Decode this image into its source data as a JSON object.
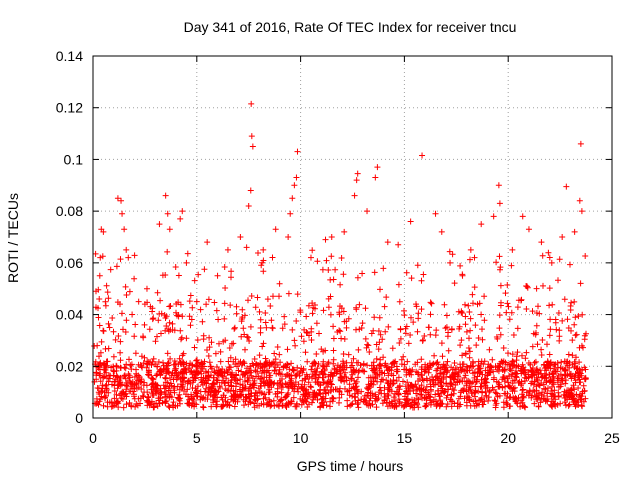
{
  "chart_data": {
    "type": "scatter",
    "title": "Day 341 of 2016, Rate Of TEC Index for receiver tncu",
    "xlabel": "GPS time / hours",
    "ylabel": "ROTI / TECUs",
    "xlim": [
      0,
      25
    ],
    "ylim": [
      0,
      0.14
    ],
    "xticks": [
      0,
      5,
      10,
      15,
      20,
      25
    ],
    "yticks": [
      0,
      0.02,
      0.04,
      0.06,
      0.08,
      0.1,
      0.12,
      0.14
    ],
    "xtick_labels": [
      "0",
      "5",
      "10",
      "15",
      "20",
      "25"
    ],
    "ytick_labels": [
      "0",
      "0.02",
      "0.04",
      "0.06",
      "0.08",
      "0.1",
      "0.12",
      "0.14"
    ],
    "grid": true,
    "marker": "+",
    "series_color": "#ff0000",
    "series": [
      {
        "name": "ROTI",
        "points": [
          [
            0.2,
            0.028
          ],
          [
            0.3,
            0.046
          ],
          [
            0.35,
            0.062
          ],
          [
            0.4,
            0.073
          ],
          [
            0.5,
            0.072
          ],
          [
            0.8,
            0.035
          ],
          [
            1.2,
            0.085
          ],
          [
            1.35,
            0.084
          ],
          [
            1.4,
            0.079
          ],
          [
            1.5,
            0.073
          ],
          [
            1.6,
            0.065
          ],
          [
            1.7,
            0.062
          ],
          [
            2.2,
            0.045
          ],
          [
            2.6,
            0.05
          ],
          [
            3.2,
            0.075
          ],
          [
            3.5,
            0.086
          ],
          [
            3.6,
            0.079
          ],
          [
            3.7,
            0.073
          ],
          [
            4.2,
            0.077
          ],
          [
            4.3,
            0.08
          ],
          [
            4.5,
            0.06
          ],
          [
            5.0,
            0.045
          ],
          [
            5.5,
            0.068
          ],
          [
            6.0,
            0.055
          ],
          [
            6.5,
            0.065
          ],
          [
            7.1,
            0.07
          ],
          [
            7.4,
            0.066
          ],
          [
            7.5,
            0.082
          ],
          [
            7.6,
            0.088
          ],
          [
            7.62,
            0.1215
          ],
          [
            7.65,
            0.109
          ],
          [
            7.7,
            0.105
          ],
          [
            8.2,
            0.065
          ],
          [
            8.8,
            0.073
          ],
          [
            9.4,
            0.07
          ],
          [
            9.5,
            0.079
          ],
          [
            9.6,
            0.085
          ],
          [
            9.7,
            0.09
          ],
          [
            9.8,
            0.093
          ],
          [
            9.85,
            0.103
          ],
          [
            10.5,
            0.062
          ],
          [
            11.2,
            0.069
          ],
          [
            11.5,
            0.07
          ],
          [
            12.1,
            0.072
          ],
          [
            12.6,
            0.086
          ],
          [
            12.7,
            0.092
          ],
          [
            12.75,
            0.0945
          ],
          [
            13.2,
            0.08
          ],
          [
            13.6,
            0.093
          ],
          [
            13.7,
            0.097
          ],
          [
            14.2,
            0.068
          ],
          [
            14.7,
            0.067
          ],
          [
            15.3,
            0.076
          ],
          [
            15.85,
            0.1015
          ],
          [
            16.5,
            0.079
          ],
          [
            16.8,
            0.072
          ],
          [
            17.2,
            0.06
          ],
          [
            17.8,
            0.055
          ],
          [
            18.2,
            0.065
          ],
          [
            18.7,
            0.075
          ],
          [
            19.3,
            0.078
          ],
          [
            19.55,
            0.09
          ],
          [
            19.6,
            0.083
          ],
          [
            20.2,
            0.065
          ],
          [
            20.7,
            0.078
          ],
          [
            21.0,
            0.073
          ],
          [
            21.6,
            0.068
          ],
          [
            22.1,
            0.06
          ],
          [
            22.6,
            0.07
          ],
          [
            22.8,
            0.0895
          ],
          [
            23.2,
            0.072
          ],
          [
            23.45,
            0.084
          ],
          [
            23.5,
            0.106
          ],
          [
            23.55,
            0.08
          ]
        ]
      }
    ]
  }
}
